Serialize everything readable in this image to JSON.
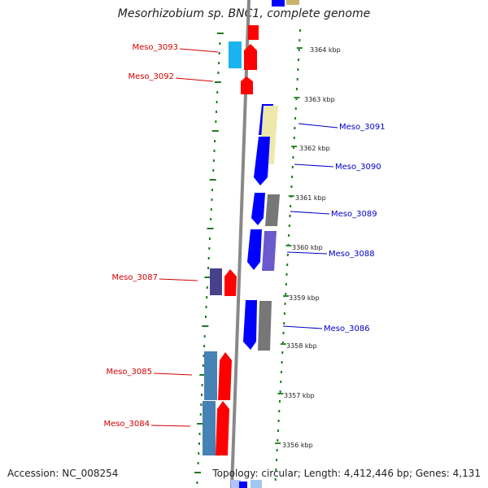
{
  "genome": {
    "title": "Mesorhizobium sp. BNC1, complete genome",
    "accession": "Accession: NC_008254",
    "summary": "Topology: circular; Length: 4,412,446 bp; Genes: 4,131"
  },
  "colors": {
    "reverse_label": "#d40000",
    "forward_label": "#0000c8",
    "backbone": "#888888",
    "ring_dots": "#1f7a1f",
    "ring_dashes": "#2e8b2e",
    "red_gene": "#ff0000",
    "blue_gene": "#0000ff",
    "cyan_gene": "#19b4f0",
    "steelblue_gene": "#4682b4",
    "slateblue_gene": "#6a5acd",
    "navy_gene": "#48418c",
    "gray_gene": "#777777",
    "khaki_gene": "#eee8aa"
  },
  "scale": {
    "ticks": [
      {
        "label": "3364 kbp"
      },
      {
        "label": "3363 kbp"
      },
      {
        "label": "3362 kbp"
      },
      {
        "label": "3361 kbp"
      },
      {
        "label": "3360 kbp"
      },
      {
        "label": "3359 kbp"
      },
      {
        "label": "3358 kbp"
      },
      {
        "label": "3357 kbp"
      },
      {
        "label": "3356 kbp"
      }
    ]
  },
  "gene_labels": {
    "reverse": [
      "Meso_3093",
      "Meso_3092",
      "Meso_3087",
      "Meso_3085",
      "Meso_3084"
    ],
    "forward": [
      "Meso_3091",
      "Meso_3090",
      "Meso_3089",
      "Meso_3088",
      "Meso_3086"
    ]
  }
}
